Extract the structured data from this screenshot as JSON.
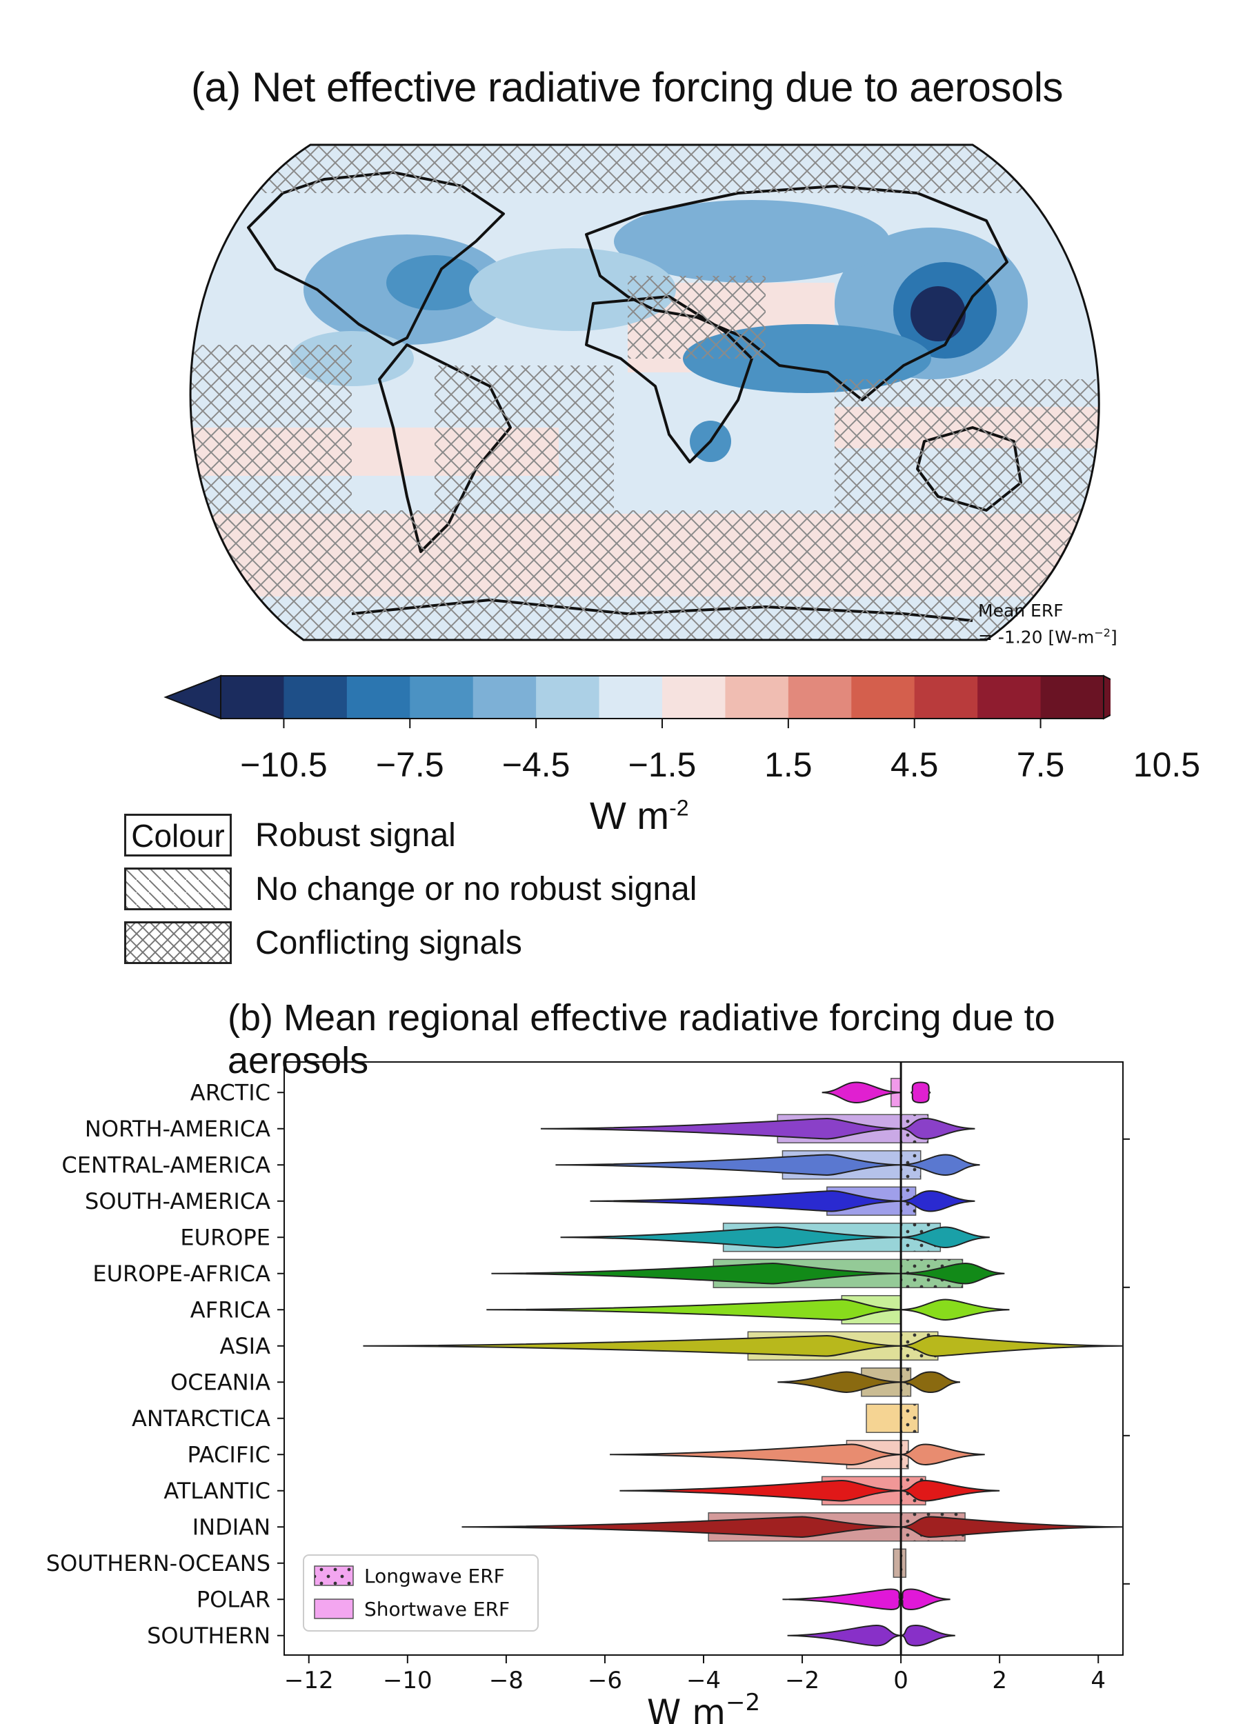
{
  "panel_a": {
    "title": "(a) Net effective radiative forcing due to aerosols",
    "mean_label_1": "Mean ERF",
    "mean_label_2": "= -1.20 [W-m",
    "mean_label_sup": "−2",
    "mean_label_3": "]",
    "colorbar": {
      "ticks": [
        "−10.5",
        "−7.5",
        "−4.5",
        "−1.5",
        "1.5",
        "4.5",
        "7.5",
        "10.5"
      ],
      "unit": "W m",
      "unit_sup": "-2",
      "colors": [
        "#1b2c5e",
        "#1e4f88",
        "#2c76b0",
        "#4b92c3",
        "#7db0d6",
        "#acd0e6",
        "#dbe9f4",
        "#f6e2df",
        "#f0bdb2",
        "#e2897c",
        "#d45f4d",
        "#b93b3c",
        "#8f1c2f",
        "#6a1324"
      ],
      "extend_low": "#1b2c5e",
      "extend_high": "#6a1324"
    },
    "legend": [
      {
        "box": "Colour",
        "text": "Robust signal"
      },
      {
        "box": "",
        "text": "No change or no robust signal"
      },
      {
        "box": "",
        "text": "Conflicting signals"
      }
    ]
  },
  "panel_b": {
    "title": "(b)  Mean regional effective radiative forcing due to aerosols",
    "xlabel": "W m",
    "xlabel_sup": "−2",
    "legend": [
      {
        "label": "Longwave ERF"
      },
      {
        "label": "Shortwave ERF"
      }
    ]
  },
  "chart_data": {
    "type": "bar",
    "title": "(b)  Mean regional effective radiative forcing due to aerosols",
    "xlabel": "W m−2",
    "xlim": [
      -12.5,
      4.5
    ],
    "xticks": [
      "−12",
      "−10",
      "−8",
      "−6",
      "−4",
      "−2",
      "0",
      "2",
      "4"
    ],
    "orientation": "horizontal",
    "categories": [
      "ARCTIC",
      "NORTH-AMERICA",
      "CENTRAL-AMERICA",
      "SOUTH-AMERICA",
      "EUROPE",
      "EUROPE-AFRICA",
      "AFRICA",
      "ASIA",
      "OCEANIA",
      "ANTARCTICA",
      "PACIFIC",
      "ATLANTIC",
      "INDIAN",
      "SOUTHERN-OCEANS",
      "POLAR",
      "SOUTHERN"
    ],
    "colors": [
      "#e020d0",
      "#8a40c8",
      "#5a78d0",
      "#2a2ad0",
      "#1aa0a8",
      "#128a18",
      "#88dc1c",
      "#b8b81c",
      "#8a6a10",
      "#e8a010",
      "#e88c70",
      "#e01818",
      "#a02020",
      "#8a4a2a",
      "#e018d8",
      "#8830c8"
    ],
    "series": [
      {
        "name": "Shortwave ERF",
        "values": [
          -0.2,
          -2.5,
          -2.4,
          -1.5,
          -3.6,
          -3.8,
          -1.2,
          -3.1,
          -0.8,
          -0.7,
          -1.1,
          -1.6,
          -3.9,
          -0.15,
          0,
          0
        ]
      },
      {
        "name": "Longwave ERF",
        "values": [
          0.0,
          0.55,
          0.4,
          0.3,
          0.8,
          1.25,
          0.0,
          0.75,
          0.2,
          0.35,
          0.15,
          0.5,
          1.3,
          0.1,
          0,
          0
        ]
      }
    ],
    "violins_sw": [
      {
        "min": -1.6,
        "max": 0,
        "peak": -0.9
      },
      {
        "min": -7.3,
        "max": 0,
        "peak": -1.5
      },
      {
        "min": -7.0,
        "max": 0,
        "peak": -1.5
      },
      {
        "min": -6.3,
        "max": 0,
        "peak": -1.4
      },
      {
        "min": -6.9,
        "max": 0,
        "peak": -2.5
      },
      {
        "min": -8.3,
        "max": 0,
        "peak": -2.6
      },
      {
        "min": -8.4,
        "max": 0,
        "peak": -1.2
      },
      {
        "min": -10.9,
        "max": 0,
        "peak": -1.5
      },
      {
        "min": -2.5,
        "max": 0,
        "peak": -1.1
      },
      null,
      {
        "min": -5.9,
        "max": 0,
        "peak": -1.0
      },
      {
        "min": -5.7,
        "max": 0,
        "peak": -1.2
      },
      {
        "min": -8.9,
        "max": 0,
        "peak": -2.0
      },
      null,
      {
        "min": -2.4,
        "max": 0,
        "peak": -0.2
      },
      {
        "min": -2.3,
        "max": 0,
        "peak": -0.5
      }
    ],
    "violins_lw": [
      {
        "min": 0.2,
        "max": 0.6,
        "peak": 0.4
      },
      {
        "min": 0,
        "max": 1.5,
        "peak": 0.5
      },
      {
        "min": 0,
        "max": 1.6,
        "peak": 0.9
      },
      {
        "min": 0,
        "max": 1.5,
        "peak": 0.6
      },
      {
        "min": 0,
        "max": 1.8,
        "peak": 0.9
      },
      {
        "min": 0,
        "max": 2.1,
        "peak": 1.3
      },
      {
        "min": 0,
        "max": 2.2,
        "peak": 0.9
      },
      {
        "min": 0,
        "max": 4.5,
        "peak": 0.7
      },
      {
        "min": 0,
        "max": 1.2,
        "peak": 0.6
      },
      null,
      {
        "min": 0,
        "max": 1.7,
        "peak": 0.5
      },
      {
        "min": 0,
        "max": 2.0,
        "peak": 0.5
      },
      {
        "min": 0,
        "max": 4.5,
        "peak": 0.6
      },
      null,
      {
        "min": 0,
        "max": 1.0,
        "peak": 0.2
      },
      {
        "min": 0,
        "max": 1.1,
        "peak": 0.3
      }
    ]
  }
}
